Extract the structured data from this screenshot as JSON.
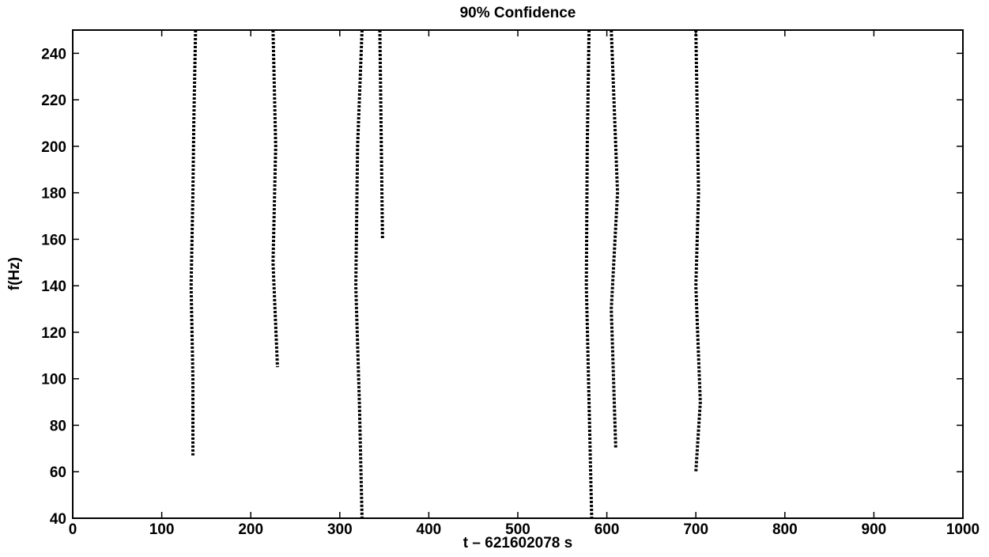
{
  "chart_data": {
    "type": "line",
    "title": "90% Confidence",
    "x_label": "t – 621602078 s",
    "y_label": "f(Hz)",
    "xlim": [
      0,
      1000
    ],
    "xticks": [
      0,
      100,
      200,
      300,
      400,
      500,
      600,
      700,
      800,
      900,
      1000
    ],
    "ylim": [
      40,
      250
    ],
    "yticks": [
      40,
      60,
      80,
      100,
      120,
      140,
      160,
      180,
      200,
      220,
      240
    ],
    "grid": false,
    "series": [
      {
        "color": "#000000",
        "x": [
          138,
          136,
          135,
          133,
          135,
          135
        ],
        "values": [
          250,
          210,
          180,
          140,
          100,
          67
        ]
      },
      {
        "color": "#000000",
        "x": [
          225,
          228,
          225,
          230
        ],
        "values": [
          250,
          200,
          150,
          105
        ]
      },
      {
        "color": "#000000",
        "x": [
          325,
          320,
          318,
          322,
          325
        ],
        "values": [
          250,
          200,
          140,
          90,
          40
        ]
      },
      {
        "color": "#000000",
        "x": [
          345,
          348
        ],
        "values": [
          250,
          160
        ]
      },
      {
        "color": "#000000",
        "x": [
          580,
          578,
          577,
          583
        ],
        "values": [
          250,
          200,
          140,
          40
        ]
      },
      {
        "color": "#000000",
        "x": [
          605,
          612,
          605,
          610
        ],
        "values": [
          250,
          180,
          130,
          70
        ]
      },
      {
        "color": "#000000",
        "x": [
          700,
          703,
          700,
          705,
          700
        ],
        "values": [
          250,
          180,
          140,
          90,
          60
        ]
      }
    ]
  }
}
